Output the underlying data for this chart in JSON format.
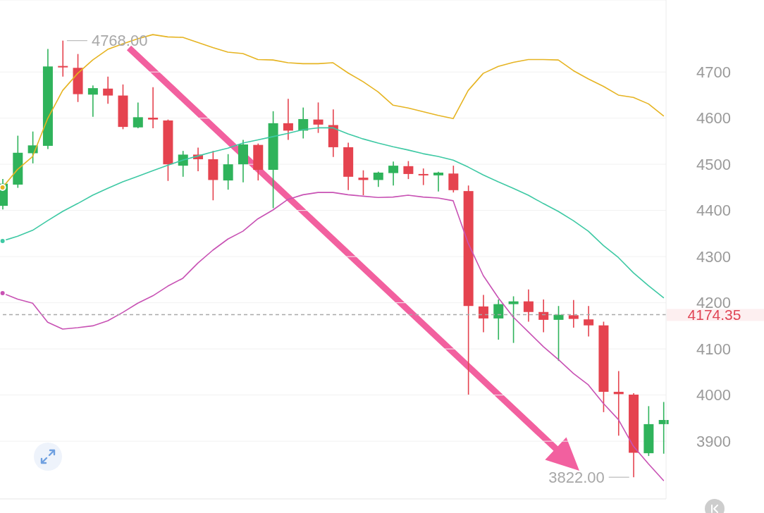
{
  "chart_data": {
    "type": "candlestick",
    "categories": [
      null,
      null,
      null,
      null,
      null,
      null,
      null,
      null,
      null,
      null,
      null,
      null,
      null,
      null,
      null,
      null,
      null,
      null,
      null,
      null,
      null,
      null,
      null,
      null,
      null,
      null,
      null,
      null,
      null,
      null,
      null,
      null,
      null,
      null,
      null,
      null,
      null,
      null,
      null,
      null,
      null,
      null,
      null,
      null,
      null
    ],
    "ohlc": [
      [
        4410,
        4468,
        4402,
        4458
      ],
      [
        4456,
        4562,
        4449,
        4525
      ],
      [
        4524,
        4571,
        4502,
        4541
      ],
      [
        4540,
        4750,
        4533,
        4712
      ],
      [
        4713,
        4768,
        4690,
        4711
      ],
      [
        4709,
        4739,
        4635,
        4652
      ],
      [
        4651,
        4671,
        4603,
        4665
      ],
      [
        4664,
        4690,
        4631,
        4649
      ],
      [
        4649,
        4673,
        4576,
        4581
      ],
      [
        4580,
        4634,
        4578,
        4602
      ],
      [
        4601,
        4667,
        4578,
        4597
      ],
      [
        4595,
        4597,
        4464,
        4500
      ],
      [
        4497,
        4529,
        4473,
        4521
      ],
      [
        4521,
        4536,
        4485,
        4511
      ],
      [
        4511,
        4529,
        4422,
        4466
      ],
      [
        4465,
        4522,
        4445,
        4500
      ],
      [
        4500,
        4553,
        4461,
        4543
      ],
      [
        4542,
        4545,
        4465,
        4488
      ],
      [
        4488,
        4615,
        4405,
        4589
      ],
      [
        4589,
        4642,
        4553,
        4573
      ],
      [
        4573,
        4623,
        4556,
        4598
      ],
      [
        4597,
        4634,
        4568,
        4586
      ],
      [
        4585,
        4619,
        4516,
        4537
      ],
      [
        4537,
        4547,
        4444,
        4473
      ],
      [
        4471,
        4487,
        4433,
        4466
      ],
      [
        4466,
        4484,
        4451,
        4482
      ],
      [
        4481,
        4506,
        4454,
        4497
      ],
      [
        4496,
        4507,
        4468,
        4479
      ],
      [
        4479,
        4491,
        4455,
        4477
      ],
      [
        4476,
        4484,
        4441,
        4482
      ],
      [
        4480,
        4497,
        4439,
        4444
      ],
      [
        4442,
        4454,
        4001,
        4193
      ],
      [
        4192,
        4217,
        4136,
        4166
      ],
      [
        4166,
        4207,
        4120,
        4197
      ],
      [
        4197,
        4214,
        4113,
        4203
      ],
      [
        4203,
        4229,
        4159,
        4180
      ],
      [
        4180,
        4207,
        4136,
        4163
      ],
      [
        4163,
        4193,
        4074,
        4174
      ],
      [
        4173,
        4206,
        4146,
        4165
      ],
      [
        4164,
        4193,
        4127,
        4151
      ],
      [
        4151,
        4159,
        3963,
        4007
      ],
      [
        4007,
        4052,
        3912,
        4002
      ],
      [
        4001,
        4004,
        3822,
        3875
      ],
      [
        3874,
        3976,
        3868,
        3937
      ],
      [
        3937,
        3985,
        3873,
        3946
      ]
    ],
    "colors": [
      "#2fb35b",
      "#2fb35b",
      "#2fb35b",
      "#2fb35b",
      "#e5434f",
      "#e5434f",
      "#2fb35b",
      "#e5434f",
      "#e5434f",
      "#2fb35b",
      "#e5434f",
      "#e5434f",
      "#2fb35b",
      "#e5434f",
      "#e5434f",
      "#2fb35b",
      "#2fb35b",
      "#e5434f",
      "#2fb35b",
      "#e5434f",
      "#2fb35b",
      "#e5434f",
      "#e5434f",
      "#e5434f",
      "#e5434f",
      "#2fb35b",
      "#2fb35b",
      "#e5434f",
      "#e5434f",
      "#2fb35b",
      "#e5434f",
      "#e5434f",
      "#e5434f",
      "#2fb35b",
      "#2fb35b",
      "#e5434f",
      "#e5434f",
      "#2fb35b",
      "#e5434f",
      "#e5434f",
      "#e5434f",
      "#e5434f",
      "#e5434f",
      "#2fb35b",
      "#2fb35b"
    ],
    "series": [
      {
        "type": "line",
        "color": "#e6b422",
        "values": [
          4450,
          4489,
          4517,
          4599,
          4660,
          4697,
          4726,
          4749,
          4761,
          4772,
          4781,
          4776,
          4775,
          4764,
          4753,
          4743,
          4740,
          4727,
          4726,
          4720,
          4718,
          4718,
          4720,
          4698,
          4679,
          4657,
          4628,
          4622,
          4614,
          4606,
          4599,
          4660,
          4697,
          4712,
          4721,
          4727,
          4727,
          4726,
          4703,
          4685,
          4669,
          4650,
          4645,
          4631,
          4605
        ]
      },
      {
        "type": "line",
        "color": "#3ec9a4",
        "values": [
          4334,
          4344,
          4357,
          4378,
          4398,
          4415,
          4433,
          4448,
          4462,
          4474,
          4486,
          4498,
          4509,
          4518,
          4527,
          4535,
          4546,
          4553,
          4560,
          4567,
          4575,
          4579,
          4579,
          4566,
          4555,
          4546,
          4538,
          4531,
          4523,
          4517,
          4509,
          4494,
          4477,
          4462,
          4448,
          4433,
          4415,
          4398,
          4378,
          4355,
          4324,
          4298,
          4265,
          4237,
          4211
        ]
      },
      {
        "type": "line",
        "color": "#c852b4",
        "values": [
          4221,
          4208,
          4199,
          4158,
          4143,
          4146,
          4150,
          4161,
          4179,
          4199,
          4215,
          4236,
          4253,
          4286,
          4314,
          4338,
          4355,
          4382,
          4401,
          4424,
          4434,
          4439,
          4439,
          4434,
          4431,
          4428,
          4429,
          4433,
          4429,
          4427,
          4421,
          4329,
          4259,
          4211,
          4169,
          4137,
          4105,
          4077,
          4047,
          4022,
          3982,
          3947,
          3889,
          3851,
          3815
        ]
      }
    ],
    "ylim": [
      3775,
      4856
    ],
    "yticks": [
      3900,
      4000,
      4100,
      4200,
      4300,
      4400,
      4500,
      4600,
      4700
    ],
    "grid": "y",
    "ref_lines": [
      {
        "axis": "y",
        "value": 4174.35,
        "label": "4174.35",
        "color": "#a9a9a9",
        "line_style": "dashed"
      }
    ],
    "annotations": [
      "4768.00",
      "3822.00"
    ]
  }
}
